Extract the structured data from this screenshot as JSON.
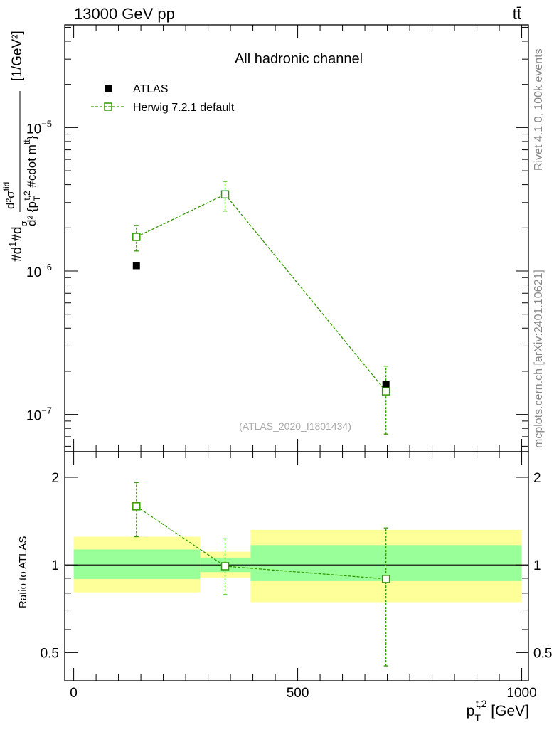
{
  "header": {
    "left_label": "13000 GeV pp",
    "right_label": "tt̄"
  },
  "side_labels": {
    "rivet": "Rivet 4.1.0,  100k events",
    "mcplots": "mcplots.cern.ch [arXiv:2401.10621]"
  },
  "chart_data": [
    {
      "type": "line",
      "panel": "main",
      "title": "All hadronic channel",
      "watermark": "(ATLAS_2020_I1801434)",
      "ylabel": "#d1#d / σ d²σ^{fid} / d²{p_T^{t,2} #cdot m^{tt̄}} [1/GeV²]",
      "ylabel_parts": {
        "part1": "#d",
        "part2": "1",
        "part3": "#d",
        "part4": "σ",
        "frac_num": "d²σ",
        "frac_num_sup": "fid",
        "frac_den": "d² {p",
        "frac_den_sub": "T",
        "frac_den_sup": "t,2",
        "frac_den_tail": " #cdot m",
        "frac_den_tail_sup": "tt̄",
        "frac_den_close": "}",
        "unit": "[1/GeV²]"
      },
      "yscale": "log",
      "ylim": [
        5.5e-08,
        5.2e-05
      ],
      "y_tick_labels": [
        {
          "value": 1e-07,
          "base": "10",
          "exp": "−7"
        },
        {
          "value": 1e-06,
          "base": "10",
          "exp": "−6"
        },
        {
          "value": 1e-05,
          "base": "10",
          "exp": "−5"
        }
      ],
      "legend": [
        {
          "label": "ATLAS",
          "marker": "filled-square",
          "color": "#000000"
        },
        {
          "label": "Herwig 7.2.1 default",
          "marker": "open-square",
          "color": "#339900"
        }
      ],
      "series": [
        {
          "name": "ATLAS",
          "x": [
            140,
            338,
            697
          ],
          "y": [
            1.09e-06,
            3.45e-06,
            1.62e-07
          ]
        },
        {
          "name": "Herwig 7.2.1 default",
          "x": [
            140,
            338,
            697
          ],
          "y": [
            1.73e-06,
            3.42e-06,
            1.45e-07
          ],
          "y_err_low": [
            1.38e-06,
            2.62e-06,
            7.3e-08
          ],
          "y_err_high": [
            2.08e-06,
            4.22e-06,
            2.17e-07
          ]
        }
      ]
    },
    {
      "type": "line",
      "panel": "ratio",
      "ylabel": "Ratio to ATLAS",
      "xlabel": "p_T^{t,2} [GeV]",
      "xlabel_parts": {
        "main": "p",
        "sub": "T",
        "sup": "t,2",
        "unit": " [GeV]"
      },
      "yscale": "log",
      "ylim": [
        0.4,
        2.45
      ],
      "xlim": [
        -20,
        1015
      ],
      "x_tick_labels": [
        "0",
        "500",
        "1000"
      ],
      "y_tick_labels": [
        {
          "value": 0.5,
          "label": "0.5"
        },
        {
          "value": 1,
          "label": "1"
        },
        {
          "value": 2,
          "label": "2"
        }
      ],
      "bands": [
        {
          "x_low": 0,
          "x_high": 282,
          "stat_low": 0.895,
          "stat_high": 1.13,
          "tot_low": 0.805,
          "tot_high": 1.25
        },
        {
          "x_low": 282,
          "x_high": 395,
          "stat_low": 0.945,
          "stat_high": 1.06,
          "tot_low": 0.905,
          "tot_high": 1.11
        },
        {
          "x_low": 395,
          "x_high": 1000,
          "stat_low": 0.88,
          "stat_high": 1.17,
          "tot_low": 0.745,
          "tot_high": 1.32
        }
      ],
      "series": [
        {
          "name": "Herwig 7.2.1 default",
          "x": [
            140,
            338,
            697
          ],
          "y": [
            1.59,
            0.99,
            0.895
          ],
          "y_err_low": [
            1.25,
            0.79,
            0.45
          ],
          "y_err_high": [
            1.92,
            1.23,
            1.34
          ]
        }
      ]
    }
  ]
}
